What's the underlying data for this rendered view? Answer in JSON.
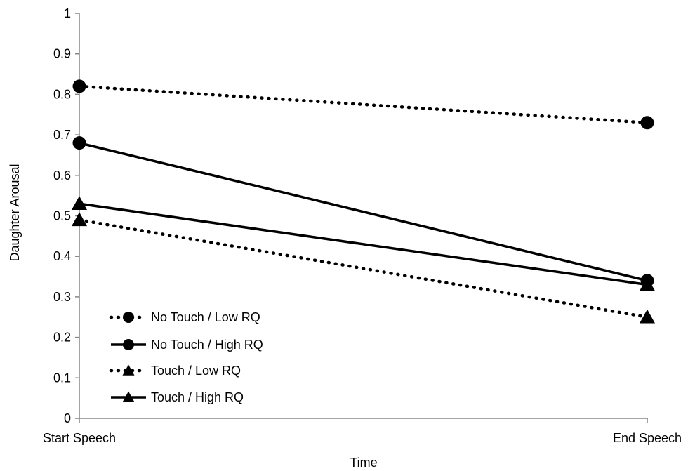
{
  "chart_data": {
    "type": "line",
    "title": "",
    "xlabel": "Time",
    "ylabel": "Daughter Arousal",
    "categories": [
      "Start Speech",
      "End Speech"
    ],
    "ylim": [
      0,
      1
    ],
    "yticks": [
      "0",
      "0.1",
      "0.2",
      "0.3",
      "0.4",
      "0.5",
      "0.6",
      "0.7",
      "0.8",
      "0.9",
      "1"
    ],
    "grid": false,
    "legend_position": "bottom-left",
    "series": [
      {
        "name": "No Touch / Low RQ",
        "values": [
          0.82,
          0.73
        ],
        "line_style": "dotted",
        "marker": "circle"
      },
      {
        "name": "No Touch / High RQ",
        "values": [
          0.68,
          0.34
        ],
        "line_style": "solid",
        "marker": "circle"
      },
      {
        "name": "Touch / Low RQ",
        "values": [
          0.49,
          0.25
        ],
        "line_style": "dotted",
        "marker": "triangle"
      },
      {
        "name": "Touch / High RQ",
        "values": [
          0.53,
          0.33
        ],
        "line_style": "solid",
        "marker": "triangle"
      }
    ],
    "colors": {
      "line": "#000000",
      "axis": "#868686"
    }
  }
}
